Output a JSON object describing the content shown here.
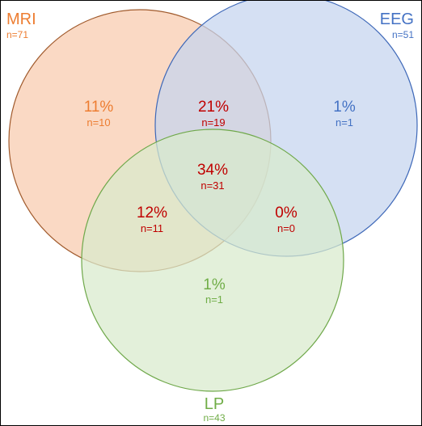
{
  "sets": {
    "mri": {
      "label": "MRI",
      "n": "n=71",
      "color": "#ED7D31",
      "fill": "#F8CBAD",
      "stroke": "#A05A2C"
    },
    "eeg": {
      "label": "EEG",
      "n": "n=51",
      "color": "#4472C4",
      "fill": "#C5D4EF",
      "stroke": "#3E68B8"
    },
    "lp": {
      "label": "LP",
      "n": "n=43",
      "color": "#70AD47",
      "fill": "#D8EACC",
      "stroke": "#6FA84A"
    }
  },
  "regions": {
    "mri_only": {
      "pct": "11%",
      "n": "n=10"
    },
    "mri_eeg": {
      "pct": "21%",
      "n": "n=19"
    },
    "eeg_only": {
      "pct": "1%",
      "n": "n=1"
    },
    "all_three": {
      "pct": "34%",
      "n": "n=31"
    },
    "mri_lp": {
      "pct": "12%",
      "n": "n=11"
    },
    "eeg_lp": {
      "pct": "0%",
      "n": "n=0"
    },
    "lp_only": {
      "pct": "1%",
      "n": "n=1"
    }
  },
  "colors": {
    "overlap_text": "#C00000",
    "border": "#000000"
  }
}
